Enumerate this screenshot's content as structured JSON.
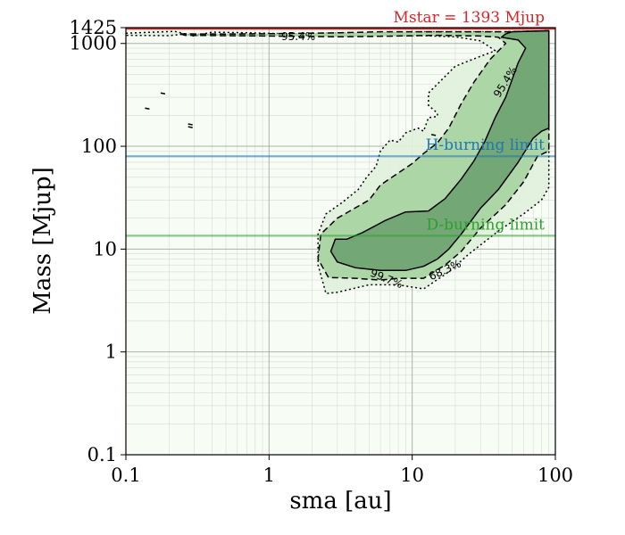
{
  "chart_data": {
    "type": "contour",
    "xscale": "log",
    "yscale": "log",
    "xlabel": "sma [au]",
    "ylabel": "Mass [Mjup]",
    "xlim": [
      0.1,
      100
    ],
    "ylim": [
      0.1,
      1425
    ],
    "xticks": [
      {
        "value": 0.1,
        "label": "0.1"
      },
      {
        "value": 1,
        "label": "1"
      },
      {
        "value": 10,
        "label": "10"
      },
      {
        "value": 100,
        "label": "100"
      }
    ],
    "yticks": [
      {
        "value": 0.1,
        "label": "0.1"
      },
      {
        "value": 1,
        "label": "1"
      },
      {
        "value": 10,
        "label": "10"
      },
      {
        "value": 100,
        "label": "100"
      },
      {
        "value": 1000,
        "label": "1000"
      },
      {
        "value": 1425,
        "label": "1425"
      }
    ],
    "grid": true,
    "reference_lines": [
      {
        "name": "mstar",
        "y": 1393,
        "label": "Mstar = 1393 Mjup",
        "color": "#d62728"
      },
      {
        "name": "h-burning",
        "y": 80,
        "label": "H-burning limit",
        "color": "#1f77b4"
      },
      {
        "name": "d-burning",
        "y": 13.5,
        "label": "D-burning limit",
        "color": "#2ca02c"
      }
    ],
    "contour_labels": [
      {
        "text": "95.4%",
        "x": 1.6,
        "y": 1150,
        "rotation": 0
      },
      {
        "text": "95.4%",
        "x": 45,
        "y": 420,
        "rotation": -58
      },
      {
        "text": "68.3%",
        "x": 17,
        "y": 6.2,
        "rotation": -25
      },
      {
        "text": "99.7%",
        "x": 6.6,
        "y": 5.1,
        "rotation": 22
      }
    ],
    "contours": [
      {
        "level": "99.7%",
        "style": "dotted",
        "fill": "#e0f1dc",
        "points": [
          [
            0.1,
            1260
          ],
          [
            0.22,
            1310
          ],
          [
            0.3,
            1180
          ],
          [
            0.4,
            1290
          ],
          [
            0.7,
            1270
          ],
          [
            1.5,
            1240
          ],
          [
            3,
            1260
          ],
          [
            6,
            1270
          ],
          [
            12,
            1300
          ],
          [
            25,
            1300
          ],
          [
            45,
            1300
          ],
          [
            90,
            1330
          ],
          [
            90,
            40
          ],
          [
            80,
            30
          ],
          [
            60,
            22
          ],
          [
            40,
            15
          ],
          [
            25,
            9
          ],
          [
            18,
            6
          ],
          [
            12,
            4.1
          ],
          [
            8,
            4.5
          ],
          [
            5,
            4.5
          ],
          [
            3,
            3.8
          ],
          [
            2.5,
            3.7
          ],
          [
            2.2,
            7
          ],
          [
            2.2,
            14
          ],
          [
            2.5,
            22
          ],
          [
            3.2,
            28
          ],
          [
            4.2,
            38
          ],
          [
            4.8,
            50
          ],
          [
            5.6,
            64
          ],
          [
            6,
            90
          ],
          [
            7,
            115
          ],
          [
            8,
            110
          ],
          [
            9,
            135
          ],
          [
            11,
            150
          ],
          [
            12,
            140
          ],
          [
            13,
            190
          ],
          [
            15,
            195
          ],
          [
            15,
            210
          ],
          [
            13,
            250
          ],
          [
            13,
            330
          ],
          [
            20,
            600
          ],
          [
            30,
            750
          ],
          [
            38,
            850
          ],
          [
            30,
            1060
          ],
          [
            20,
            1160
          ],
          [
            12,
            1190
          ],
          [
            6,
            1200
          ],
          [
            3.5,
            1180
          ],
          [
            2,
            1200
          ],
          [
            1,
            1200
          ],
          [
            0.5,
            1200
          ],
          [
            0.3,
            1230
          ],
          [
            0.25,
            1230
          ],
          [
            0.2,
            1190
          ],
          [
            0.1,
            1200
          ]
        ]
      },
      {
        "level": "95.4%",
        "style": "dashed",
        "fill": "#a8d4a2",
        "points": [
          [
            0.24,
            1240
          ],
          [
            0.5,
            1235
          ],
          [
            1,
            1245
          ],
          [
            3,
            1270
          ],
          [
            6,
            1300
          ],
          [
            12,
            1300
          ],
          [
            25,
            1300
          ],
          [
            45,
            1300
          ],
          [
            90,
            1330
          ],
          [
            90,
            90
          ],
          [
            75,
            80
          ],
          [
            60,
            45
          ],
          [
            45,
            27
          ],
          [
            30,
            16
          ],
          [
            22,
            9.5
          ],
          [
            17,
            7
          ],
          [
            12,
            5.2
          ],
          [
            8,
            5.2
          ],
          [
            6,
            5.0
          ],
          [
            4,
            5.2
          ],
          [
            2.6,
            5.3
          ],
          [
            2.2,
            8
          ],
          [
            2.3,
            14
          ],
          [
            3,
            20
          ],
          [
            5,
            30
          ],
          [
            6,
            42
          ],
          [
            8,
            55
          ],
          [
            10,
            68
          ],
          [
            12,
            85
          ],
          [
            15,
            108
          ],
          [
            18,
            150
          ],
          [
            22,
            260
          ],
          [
            27,
            420
          ],
          [
            35,
            700
          ],
          [
            45,
            1000
          ],
          [
            40,
            1150
          ],
          [
            30,
            1180
          ],
          [
            15,
            1200
          ],
          [
            8,
            1180
          ],
          [
            5,
            1170
          ],
          [
            3,
            1160
          ],
          [
            1,
            1180
          ],
          [
            0.5,
            1190
          ],
          [
            0.26,
            1200
          ]
        ]
      },
      {
        "level": "68.3%",
        "style": "solid",
        "fill": "#6ea372",
        "points": [
          [
            50,
            1300
          ],
          [
            90,
            1330
          ],
          [
            90,
            150
          ],
          [
            80,
            140
          ],
          [
            70,
            120
          ],
          [
            55,
            70
          ],
          [
            40,
            38
          ],
          [
            30,
            25
          ],
          [
            22,
            14
          ],
          [
            18,
            10
          ],
          [
            15,
            8
          ],
          [
            12,
            6.8
          ],
          [
            9,
            6.2
          ],
          [
            6,
            6.2
          ],
          [
            4,
            6.6
          ],
          [
            3,
            7.5
          ],
          [
            2.7,
            9.5
          ],
          [
            2.9,
            12.5
          ],
          [
            3.5,
            12.5
          ],
          [
            4.5,
            14.5
          ],
          [
            6.5,
            19
          ],
          [
            9,
            23
          ],
          [
            13,
            23.5
          ],
          [
            17,
            31
          ],
          [
            22,
            48
          ],
          [
            27,
            72
          ],
          [
            32,
            110
          ],
          [
            38,
            190
          ],
          [
            45,
            300
          ],
          [
            55,
            650
          ],
          [
            62,
            900
          ],
          [
            55,
            1080
          ],
          [
            42,
            1150
          ],
          [
            45,
            1240
          ]
        ]
      }
    ]
  }
}
